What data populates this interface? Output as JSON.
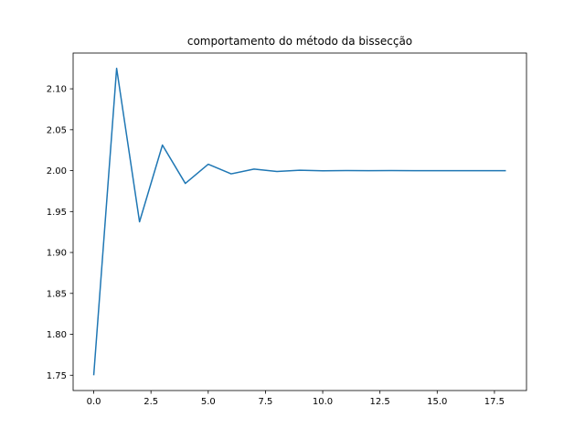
{
  "chart_data": {
    "type": "line",
    "title": "comportamento do método da bissecção",
    "xlabel": "",
    "ylabel": "",
    "xlim": [
      -0.9,
      18.9
    ],
    "ylim": [
      1.7313,
      2.1437
    ],
    "grid": false,
    "legend": "none",
    "xticks": [
      0,
      2.5,
      5,
      7.5,
      10,
      12.5,
      15,
      17.5
    ],
    "xtick_labels": [
      "0.0",
      "2.5",
      "5.0",
      "7.5",
      "10.0",
      "12.5",
      "15.0",
      "17.5"
    ],
    "yticks": [
      1.75,
      1.8,
      1.85,
      1.9,
      1.95,
      2.0,
      2.05,
      2.1
    ],
    "ytick_labels": [
      "1.75",
      "1.80",
      "1.85",
      "1.90",
      "1.95",
      "2.00",
      "2.05",
      "2.10"
    ],
    "series": [
      {
        "color": "#1f77b4",
        "x": [
          0,
          1,
          2,
          3,
          4,
          5,
          6,
          7,
          8,
          9,
          10,
          11,
          12,
          13,
          14,
          15,
          16,
          17,
          18
        ],
        "y": [
          1.75,
          2.125,
          1.9375,
          2.03125,
          1.984375,
          2.0078125,
          1.99609375,
          2.001953125,
          1.9990234375,
          2.00048828125,
          1.999755859375,
          2.0001220703125,
          1.99993896484375,
          2.000030517578125,
          1.9999847412109375,
          2.0000076293945312,
          1.9999961853027344,
          2.000001907348633,
          1.9999990463256836
        ]
      }
    ]
  }
}
